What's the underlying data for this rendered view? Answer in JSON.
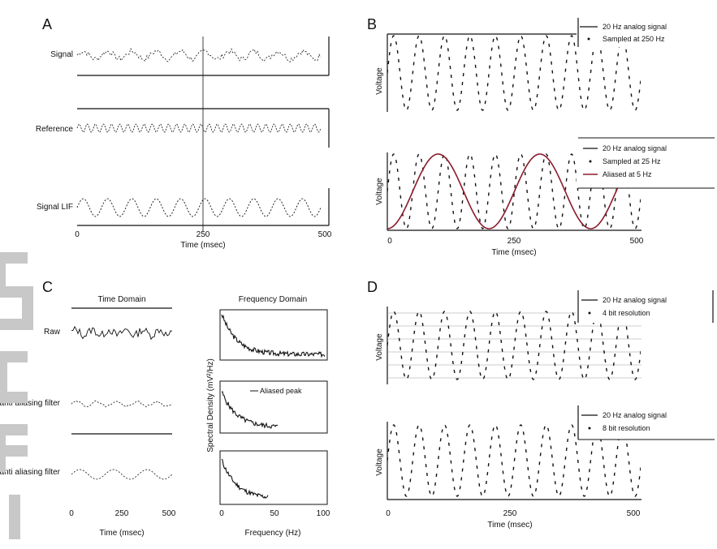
{
  "chart_data": [
    {
      "panel": "A",
      "type": "line",
      "row_labels": [
        "Signal",
        "Reference",
        "Signal LIF"
      ],
      "x_ticks": [
        "0",
        "250",
        "500"
      ],
      "xlabel": "Time (msec)",
      "series": [
        {
          "name": "Signal",
          "kind": "noisy_signal"
        },
        {
          "name": "Reference",
          "kind": "reference"
        },
        {
          "name": "Signal LIF",
          "kind": "filtered"
        }
      ]
    },
    {
      "panel": "B",
      "type": "line",
      "subplots": [
        {
          "ylabel": "Voltage",
          "legend": [
            "20 Hz analog signal",
            "Sampled at 250 Hz"
          ],
          "signal_hz": 20,
          "sample_hz": 250
        },
        {
          "ylabel": "Voltage",
          "legend": [
            "20 Hz analog signal",
            "Sampled at 25 Hz",
            "Aliased at 5 Hz"
          ],
          "signal_hz": 20,
          "sample_hz": 25,
          "alias_hz": 5
        }
      ],
      "x_ticks": [
        "0",
        "250",
        "500"
      ],
      "xlabel": "Time (msec)",
      "colors": {
        "alias": "#8b1a2a"
      }
    },
    {
      "panel": "C",
      "type": "line",
      "left_title": "Time Domain",
      "right_title": "Frequency Domain",
      "row_labels": [
        "Raw",
        "Pre anti aliasing filter",
        "With anti aliasing filter"
      ],
      "left_x_ticks": [
        "0",
        "250",
        "500"
      ],
      "left_xlabel": "Time (msec)",
      "right_x_ticks": [
        "0",
        "50",
        "100"
      ],
      "right_xlabel": "Frequency (Hz)",
      "right_ylabel": "Spectral Density (mV²/Hz)",
      "annotation": "Aliased peak"
    },
    {
      "panel": "D",
      "type": "line",
      "subplots": [
        {
          "ylabel": "Voltage",
          "legend": [
            "20 Hz analog signal",
            "4 bit resolution"
          ],
          "bits": 4
        },
        {
          "ylabel": "Voltage",
          "legend": [
            "20 Hz analog signal",
            "8 bit resolution"
          ],
          "bits": 8
        }
      ],
      "x_ticks": [
        "0",
        "250",
        "500"
      ],
      "xlabel": "Time (msec)"
    }
  ],
  "watermark": {
    "text": "Script",
    "color": "#c8c8c8"
  }
}
